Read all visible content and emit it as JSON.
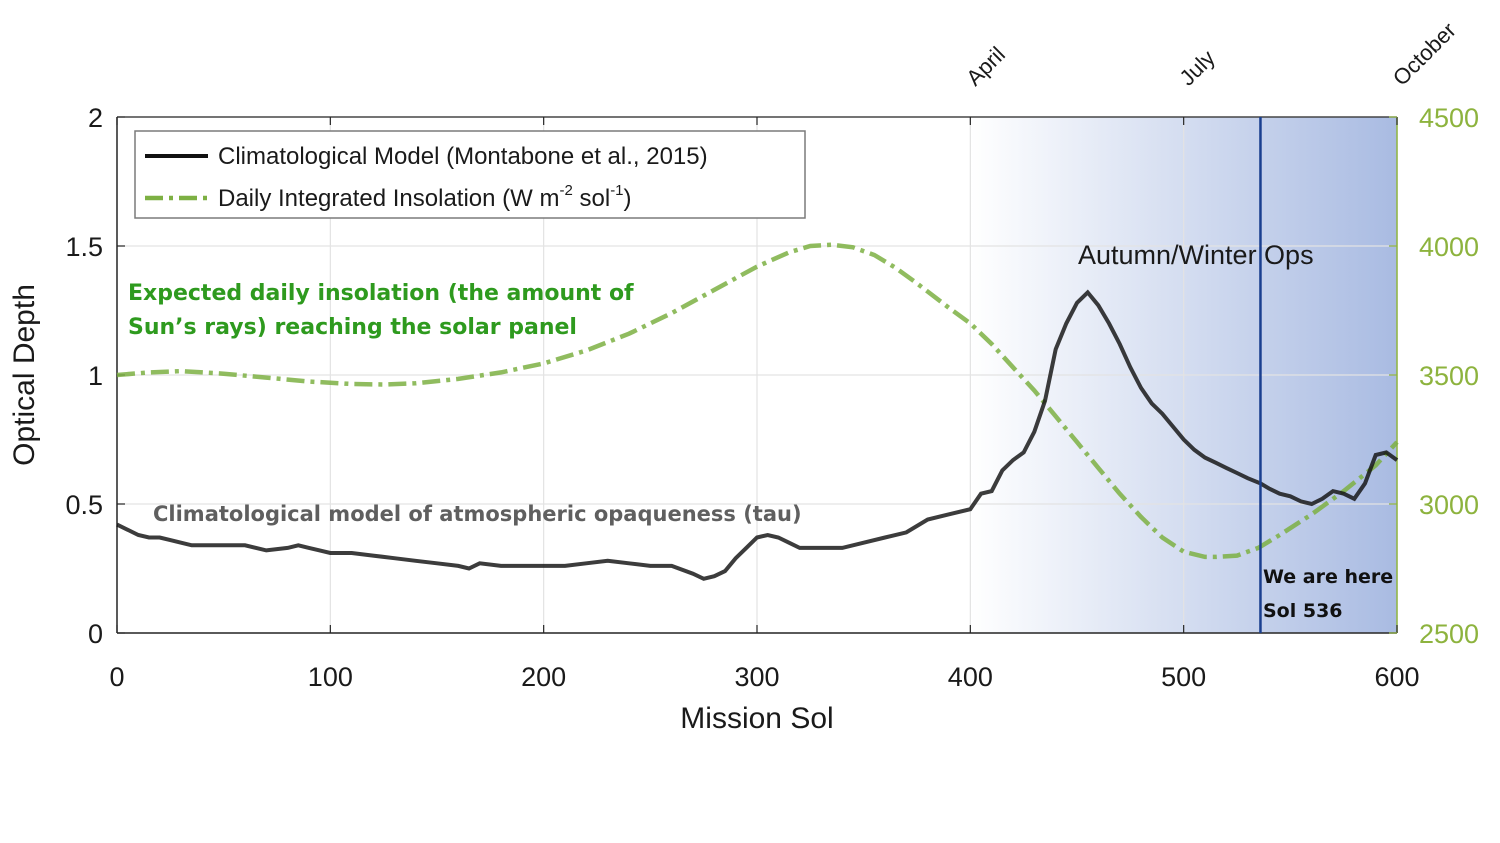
{
  "chart_data": {
    "type": "line",
    "xlabel": "Mission Sol",
    "ylabel": "Optical Depth",
    "xlim": [
      0,
      600
    ],
    "ylim": [
      0,
      2
    ],
    "y2lim": [
      2500,
      4500
    ],
    "x_ticks": [
      "0",
      "100",
      "200",
      "300",
      "400",
      "500",
      "600"
    ],
    "y_ticks": [
      "0",
      "0.5",
      "1",
      "1.5",
      "2"
    ],
    "y2_ticks": [
      "2500",
      "3000",
      "3500",
      "4000",
      "4500"
    ],
    "grid": true,
    "legend_position": "top-left",
    "top_axis_labels": [
      {
        "sol": 400,
        "label": "April"
      },
      {
        "sol": 500,
        "label": "July"
      },
      {
        "sol": 600,
        "label": "October"
      }
    ],
    "shaded_region": {
      "from": 400,
      "to": 600,
      "label": "Autumn/Winter Ops",
      "color": "#a9bbe2"
    },
    "marker_line": {
      "sol": 536,
      "color": "#1a3f8f",
      "label_line1": "We are here",
      "label_line2": "Sol 536"
    },
    "series": [
      {
        "name": "Climatological Model (Montabone et al., 2015)",
        "axis": "left",
        "color": "#111111",
        "style": "solid",
        "points": [
          [
            0,
            0.42
          ],
          [
            5,
            0.4
          ],
          [
            10,
            0.38
          ],
          [
            15,
            0.37
          ],
          [
            20,
            0.37
          ],
          [
            25,
            0.36
          ],
          [
            30,
            0.35
          ],
          [
            35,
            0.34
          ],
          [
            40,
            0.34
          ],
          [
            50,
            0.34
          ],
          [
            60,
            0.34
          ],
          [
            70,
            0.32
          ],
          [
            80,
            0.33
          ],
          [
            85,
            0.34
          ],
          [
            90,
            0.33
          ],
          [
            95,
            0.32
          ],
          [
            100,
            0.31
          ],
          [
            110,
            0.31
          ],
          [
            120,
            0.3
          ],
          [
            130,
            0.29
          ],
          [
            140,
            0.28
          ],
          [
            150,
            0.27
          ],
          [
            160,
            0.26
          ],
          [
            165,
            0.25
          ],
          [
            170,
            0.27
          ],
          [
            180,
            0.26
          ],
          [
            190,
            0.26
          ],
          [
            200,
            0.26
          ],
          [
            210,
            0.26
          ],
          [
            220,
            0.27
          ],
          [
            230,
            0.28
          ],
          [
            240,
            0.27
          ],
          [
            250,
            0.26
          ],
          [
            260,
            0.26
          ],
          [
            270,
            0.23
          ],
          [
            275,
            0.21
          ],
          [
            280,
            0.22
          ],
          [
            285,
            0.24
          ],
          [
            290,
            0.29
          ],
          [
            295,
            0.33
          ],
          [
            300,
            0.37
          ],
          [
            305,
            0.38
          ],
          [
            310,
            0.37
          ],
          [
            315,
            0.35
          ],
          [
            320,
            0.33
          ],
          [
            330,
            0.33
          ],
          [
            340,
            0.33
          ],
          [
            350,
            0.35
          ],
          [
            360,
            0.37
          ],
          [
            370,
            0.39
          ],
          [
            380,
            0.44
          ],
          [
            390,
            0.46
          ],
          [
            400,
            0.48
          ],
          [
            405,
            0.54
          ],
          [
            410,
            0.55
          ],
          [
            415,
            0.63
          ],
          [
            420,
            0.67
          ],
          [
            425,
            0.7
          ],
          [
            430,
            0.78
          ],
          [
            435,
            0.9
          ],
          [
            440,
            1.1
          ],
          [
            445,
            1.2
          ],
          [
            450,
            1.28
          ],
          [
            455,
            1.32
          ],
          [
            460,
            1.27
          ],
          [
            465,
            1.2
          ],
          [
            470,
            1.12
          ],
          [
            475,
            1.03
          ],
          [
            480,
            0.95
          ],
          [
            485,
            0.89
          ],
          [
            490,
            0.85
          ],
          [
            495,
            0.8
          ],
          [
            500,
            0.75
          ],
          [
            505,
            0.71
          ],
          [
            510,
            0.68
          ],
          [
            515,
            0.66
          ],
          [
            520,
            0.64
          ],
          [
            525,
            0.62
          ],
          [
            530,
            0.6
          ],
          [
            536,
            0.58
          ],
          [
            540,
            0.56
          ],
          [
            545,
            0.54
          ],
          [
            550,
            0.53
          ],
          [
            555,
            0.51
          ],
          [
            560,
            0.5
          ],
          [
            565,
            0.52
          ],
          [
            570,
            0.55
          ],
          [
            575,
            0.54
          ],
          [
            580,
            0.52
          ],
          [
            585,
            0.58
          ],
          [
            590,
            0.69
          ],
          [
            595,
            0.7
          ],
          [
            600,
            0.67
          ]
        ]
      },
      {
        "name": "Daily Integrated Insolation (W m-2 sol-1)",
        "axis": "right",
        "color": "#7db043",
        "style": "dash-dot",
        "points": [
          [
            0,
            3500
          ],
          [
            15,
            3510
          ],
          [
            30,
            3515
          ],
          [
            50,
            3505
          ],
          [
            70,
            3490
          ],
          [
            90,
            3475
          ],
          [
            110,
            3465
          ],
          [
            125,
            3463
          ],
          [
            140,
            3468
          ],
          [
            160,
            3485
          ],
          [
            180,
            3510
          ],
          [
            200,
            3545
          ],
          [
            220,
            3595
          ],
          [
            240,
            3660
          ],
          [
            260,
            3740
          ],
          [
            280,
            3830
          ],
          [
            300,
            3920
          ],
          [
            315,
            3975
          ],
          [
            325,
            4000
          ],
          [
            335,
            4005
          ],
          [
            345,
            3995
          ],
          [
            355,
            3965
          ],
          [
            365,
            3915
          ],
          [
            375,
            3855
          ],
          [
            390,
            3760
          ],
          [
            400,
            3700
          ],
          [
            410,
            3620
          ],
          [
            420,
            3530
          ],
          [
            430,
            3440
          ],
          [
            440,
            3340
          ],
          [
            450,
            3240
          ],
          [
            460,
            3140
          ],
          [
            470,
            3040
          ],
          [
            480,
            2950
          ],
          [
            490,
            2870
          ],
          [
            500,
            2815
          ],
          [
            510,
            2795
          ],
          [
            515,
            2795
          ],
          [
            525,
            2800
          ],
          [
            535,
            2830
          ],
          [
            545,
            2880
          ],
          [
            560,
            2960
          ],
          [
            575,
            3050
          ],
          [
            590,
            3150
          ],
          [
            600,
            3240
          ]
        ]
      }
    ],
    "annotations": {
      "insolation_line1": "Expected daily insolation (the amount of",
      "insolation_line2": "Sun’s rays) reaching the solar panel",
      "tau_label": "Climatological model of atmospheric opaqueness (tau)",
      "season_label": "Autumn/Winter Ops"
    },
    "legend": {
      "line1": "Climatological Model (Montabone et al., 2015)",
      "line2_prefix": "Daily Integrated Insolation (W m",
      "line2_sup1": "-2",
      "line2_mid": " sol",
      "line2_sup2": "-1",
      "line2_suffix": ")"
    }
  }
}
